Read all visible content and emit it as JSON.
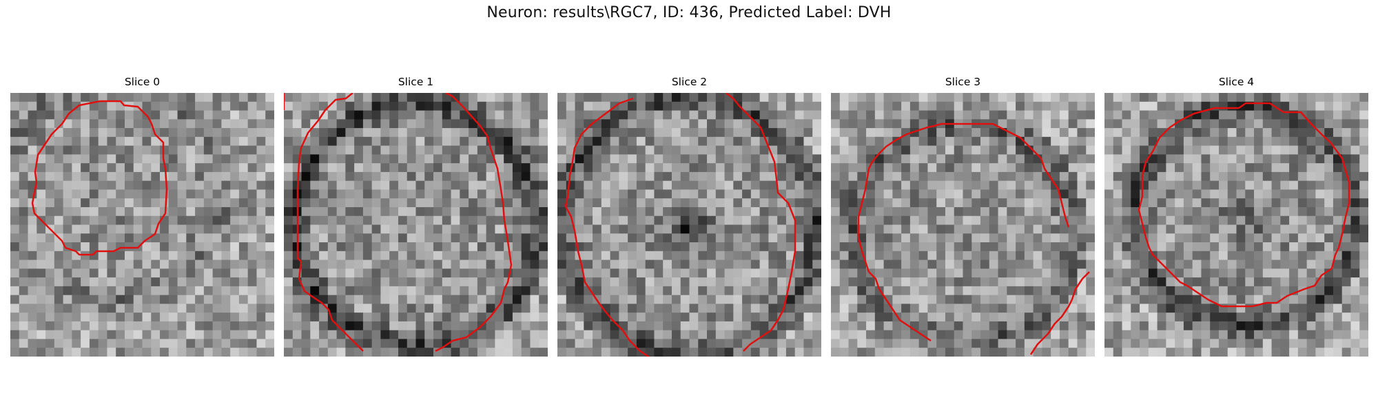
{
  "figure": {
    "title": "Neuron: results\\RGC7, ID: 436, Predicted Label: DVH"
  },
  "panels": [
    {
      "label": "Slice 0"
    },
    {
      "label": "Slice 1"
    },
    {
      "label": "Slice 2"
    },
    {
      "label": "Slice 3"
    },
    {
      "label": "Slice 4"
    }
  ],
  "colors": {
    "contour": "#e01010",
    "background": "#ffffff"
  }
}
